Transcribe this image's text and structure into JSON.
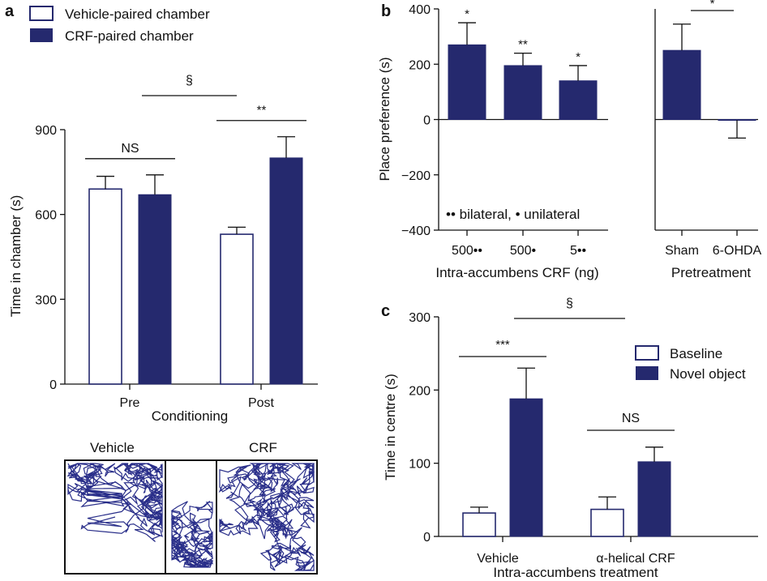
{
  "colors": {
    "filled": "#25296e",
    "open_fill": "#ffffff",
    "open_stroke": "#25296e",
    "ink": "#111111",
    "track": "#2a2f8a"
  },
  "chart_data": [
    {
      "panel": "a",
      "type": "bar",
      "categories": [
        "Pre",
        "Post"
      ],
      "series": [
        {
          "name": "Vehicle-paired chamber",
          "style": "open",
          "values": [
            690,
            530
          ],
          "errors": [
            45,
            25
          ]
        },
        {
          "name": "CRF-paired chamber",
          "style": "filled",
          "values": [
            670,
            800
          ],
          "errors": [
            70,
            75
          ]
        }
      ],
      "xlabel": "Conditioning",
      "ylabel": "Time in chamber (s)",
      "ylim": [
        0,
        900
      ],
      "yticks": [
        "0",
        "300",
        "600",
        "900"
      ],
      "annotations": [
        {
          "text": "NS",
          "from": [
            0,
            0
          ],
          "to": [
            0,
            1
          ]
        },
        {
          "text": "**",
          "from": [
            1,
            0
          ],
          "to": [
            1,
            1
          ]
        },
        {
          "text": "§",
          "from": [
            0,
            1
          ],
          "to": [
            1,
            0
          ]
        }
      ],
      "legend": "top-left",
      "grid": false,
      "track_labels": [
        "Vehicle",
        "CRF"
      ]
    },
    {
      "panel": "b",
      "type": "bar",
      "groups": [
        {
          "xlabel": "Intra-accumbens CRF (ng)",
          "categories": [
            "500••",
            "500•",
            "5••"
          ],
          "values": [
            270,
            195,
            140
          ],
          "errors": [
            80,
            45,
            55
          ],
          "stars": [
            "*",
            "**",
            "*"
          ]
        },
        {
          "xlabel": "Pretreatment",
          "categories": [
            "Sham",
            "6-OHDA"
          ],
          "values": [
            250,
            -2
          ],
          "errors": [
            95,
            65
          ],
          "bracket": "*"
        }
      ],
      "ylabel": "Place preference (s)",
      "ylim": [
        -400,
        400
      ],
      "yticks": [
        "400",
        "200",
        "0",
        "−200",
        "−400"
      ],
      "note": "•• bilateral, • unilateral",
      "grid": false
    },
    {
      "panel": "c",
      "type": "bar",
      "categories": [
        "Vehicle",
        "α-helical CRF"
      ],
      "series": [
        {
          "name": "Baseline",
          "style": "open",
          "values": [
            32,
            37
          ],
          "errors": [
            8,
            17
          ]
        },
        {
          "name": "Novel object",
          "style": "filled",
          "values": [
            188,
            102
          ],
          "errors": [
            42,
            20
          ]
        }
      ],
      "xlabel": "Intra-accumbens treatment",
      "ylabel": "Time in centre (s)",
      "ylim": [
        0,
        300
      ],
      "yticks": [
        "0",
        "100",
        "200",
        "300"
      ],
      "annotations": [
        {
          "text": "***",
          "from": [
            0,
            0
          ],
          "to": [
            0,
            1
          ]
        },
        {
          "text": "NS",
          "from": [
            1,
            0
          ],
          "to": [
            1,
            1
          ]
        },
        {
          "text": "§",
          "from": [
            0,
            1
          ],
          "to": [
            1,
            0
          ]
        }
      ],
      "legend": "top-right",
      "grid": false
    }
  ]
}
